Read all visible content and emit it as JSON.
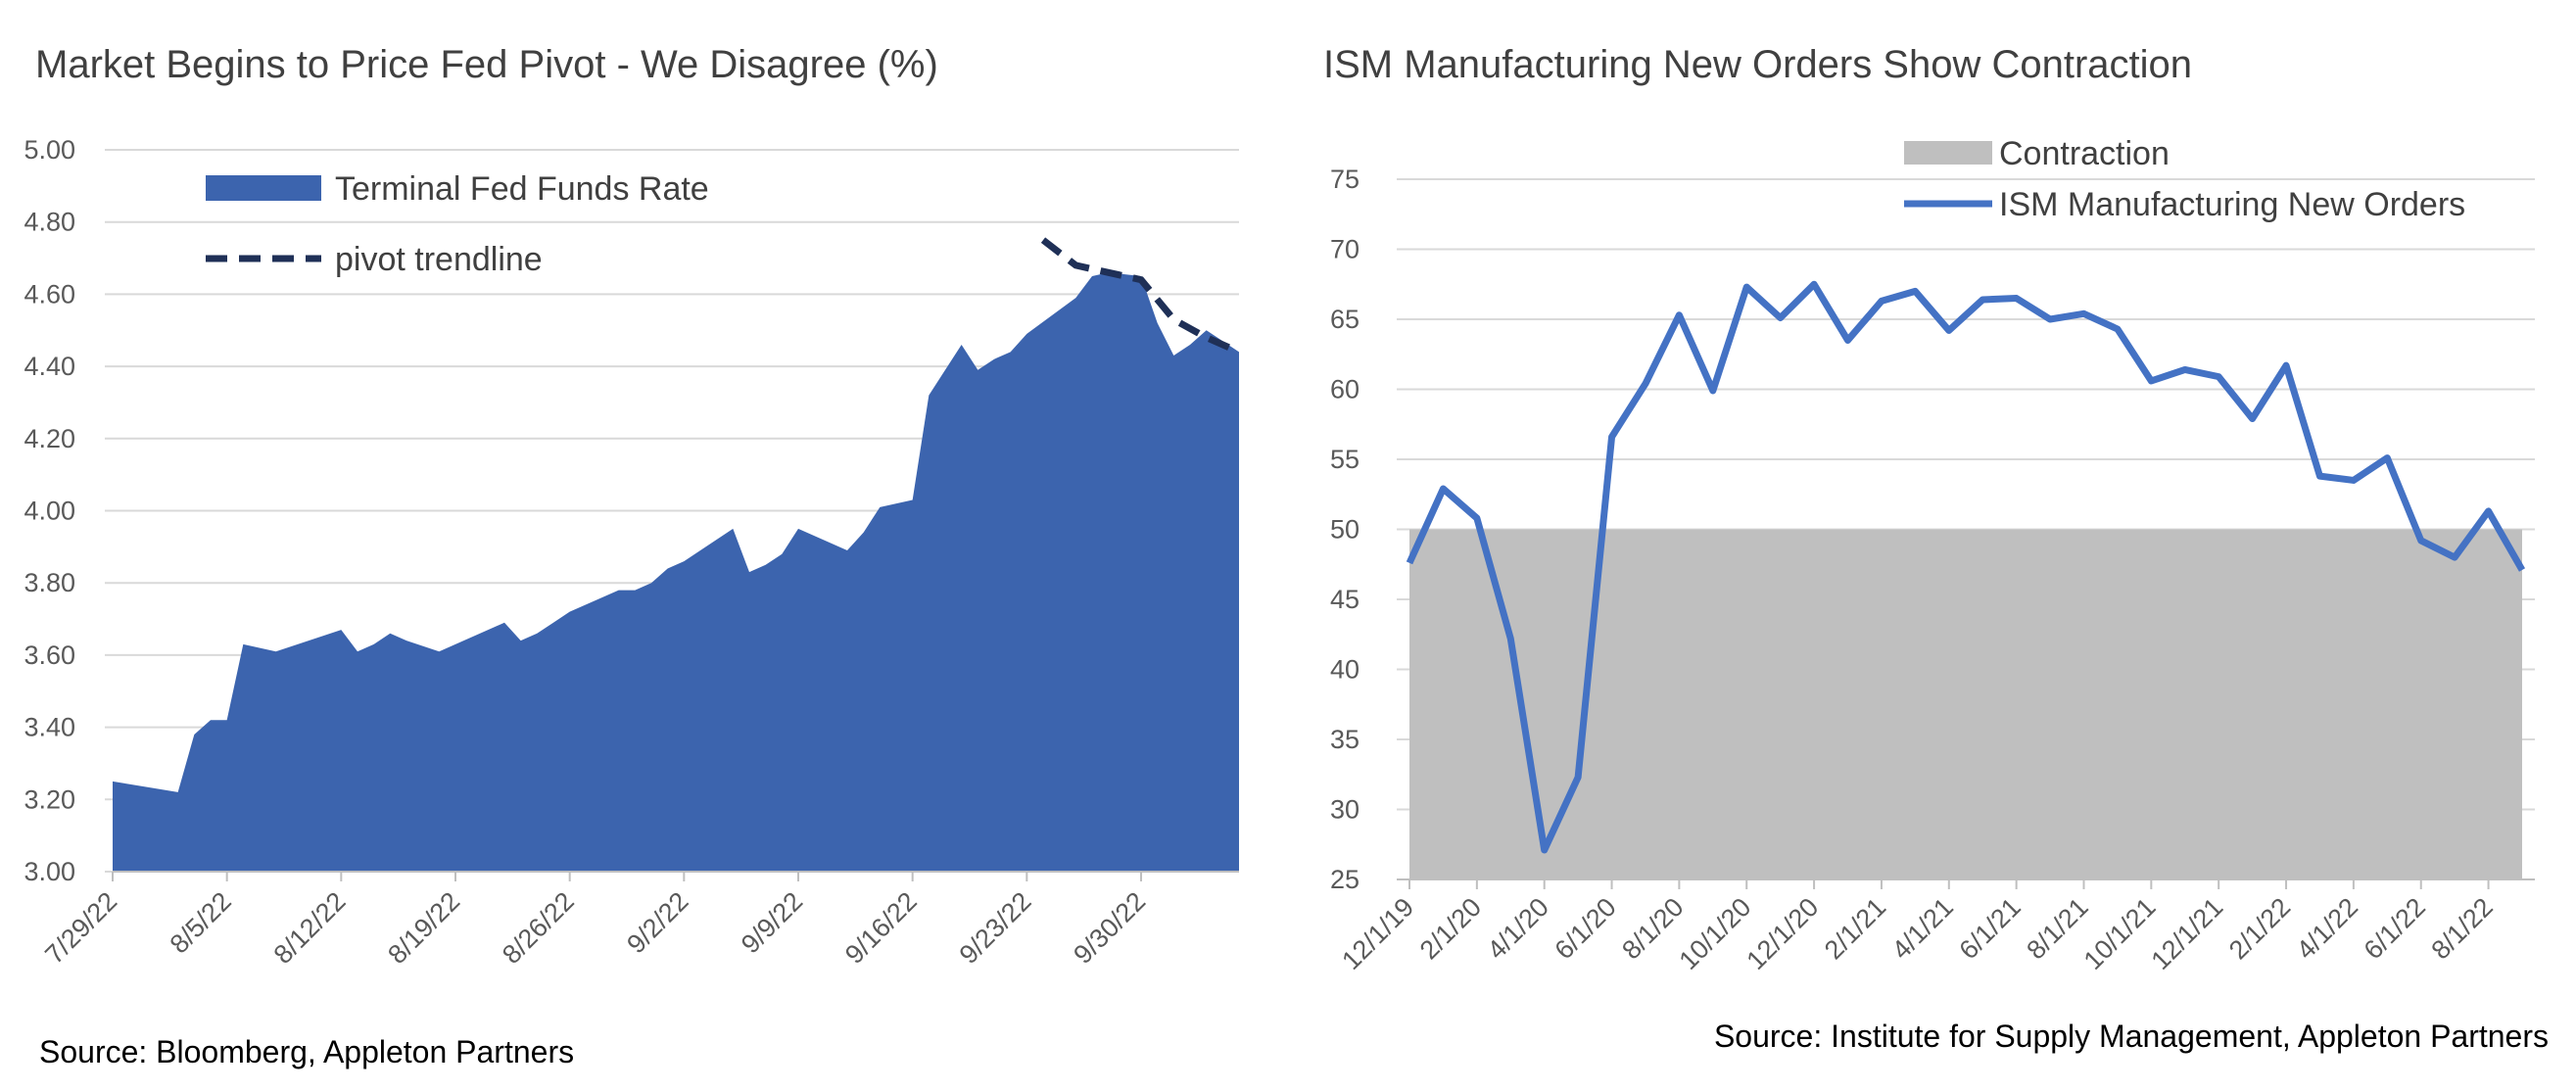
{
  "chart_data": [
    {
      "type": "area",
      "title": "Market Begins to Price Fed Pivot - We Disagree (%)",
      "xlabel": "",
      "ylabel": "",
      "ylim": [
        3.0,
        5.0
      ],
      "yticks": [
        "3.00",
        "3.20",
        "3.40",
        "3.60",
        "3.80",
        "4.00",
        "4.20",
        "4.40",
        "4.60",
        "4.80",
        "5.00"
      ],
      "xticks": [
        "7/29/22",
        "8/5/22",
        "8/12/22",
        "8/19/22",
        "8/26/22",
        "9/2/22",
        "9/9/22",
        "9/16/22",
        "9/23/22",
        "9/30/22"
      ],
      "x_range_days": [
        0,
        69
      ],
      "grid": true,
      "legend_position": "top-left",
      "series": [
        {
          "name": "Terminal Fed Funds Rate",
          "kind": "area",
          "color": "#3C64AE",
          "x": [
            0,
            4,
            5,
            6,
            7,
            8,
            10,
            14,
            15,
            16,
            17,
            18,
            20,
            24,
            25,
            26,
            27,
            28,
            31,
            32,
            33,
            34,
            35,
            38,
            39,
            40,
            41,
            42,
            45,
            46,
            47,
            49,
            50,
            52,
            53,
            54,
            55,
            56,
            59,
            60,
            61,
            63,
            64,
            65,
            66,
            67,
            68,
            69
          ],
          "y": [
            3.25,
            3.22,
            3.38,
            3.42,
            3.42,
            3.63,
            3.61,
            3.67,
            3.61,
            3.63,
            3.66,
            3.64,
            3.61,
            3.69,
            3.64,
            3.66,
            3.69,
            3.72,
            3.78,
            3.78,
            3.8,
            3.84,
            3.86,
            3.95,
            3.83,
            3.85,
            3.88,
            3.95,
            3.89,
            3.94,
            4.01,
            4.03,
            4.32,
            4.46,
            4.39,
            4.42,
            4.44,
            4.49,
            4.59,
            4.65,
            4.66,
            4.65,
            4.52,
            4.43,
            4.46,
            4.5,
            4.47,
            4.44
          ]
        },
        {
          "name": "pivot trendline",
          "kind": "dashed-line",
          "color": "#1F3057",
          "x": [
            57,
            59,
            61,
            63,
            65,
            67,
            69
          ],
          "y": [
            4.75,
            4.68,
            4.66,
            4.64,
            4.53,
            4.48,
            4.44
          ]
        }
      ]
    },
    {
      "type": "line",
      "title": "ISM Manufacturing New Orders Show Contraction",
      "xlabel": "",
      "ylabel": "",
      "ylim": [
        25,
        75
      ],
      "yticks": [
        "25",
        "30",
        "35",
        "40",
        "45",
        "50",
        "55",
        "60",
        "65",
        "70",
        "75"
      ],
      "categories": [
        "12/1/19",
        "1/1/20",
        "2/1/20",
        "3/1/20",
        "4/1/20",
        "5/1/20",
        "6/1/20",
        "7/1/20",
        "8/1/20",
        "9/1/20",
        "10/1/20",
        "11/1/20",
        "12/1/20",
        "1/1/21",
        "2/1/21",
        "3/1/21",
        "4/1/21",
        "5/1/21",
        "6/1/21",
        "7/1/21",
        "8/1/21",
        "9/1/21",
        "10/1/21",
        "11/1/21",
        "12/1/21",
        "1/1/22",
        "2/1/22",
        "3/1/22",
        "4/1/22",
        "5/1/22",
        "6/1/22",
        "7/1/22",
        "8/1/22",
        "9/1/22"
      ],
      "xtick_labels": [
        "12/1/19",
        "2/1/20",
        "4/1/20",
        "6/1/20",
        "8/1/20",
        "10/1/20",
        "12/1/20",
        "2/1/21",
        "4/1/21",
        "6/1/21",
        "8/1/21",
        "10/1/21",
        "12/1/21",
        "2/1/22",
        "4/1/22",
        "6/1/22",
        "8/1/22"
      ],
      "grid": true,
      "legend_position": "top-right",
      "contraction_threshold": 50,
      "series": [
        {
          "name": "Contraction",
          "kind": "band",
          "color": "#BFBFBF"
        },
        {
          "name": "ISM Manufacturing New Orders",
          "kind": "line",
          "color": "#4472C4",
          "values": [
            47.6,
            52.9,
            50.8,
            42.2,
            27.1,
            32.3,
            56.6,
            60.4,
            65.3,
            59.9,
            67.3,
            65.1,
            67.5,
            63.5,
            66.3,
            67.0,
            64.2,
            66.4,
            66.5,
            65.0,
            65.4,
            64.3,
            60.6,
            61.4,
            60.9,
            57.9,
            61.7,
            53.8,
            53.5,
            55.1,
            49.2,
            48.0,
            51.3,
            47.1
          ]
        }
      ]
    }
  ],
  "sources": {
    "left": "Source: Bloomberg, Appleton Partners",
    "right": "Source: Institute for Supply Management, Appleton Partners"
  }
}
